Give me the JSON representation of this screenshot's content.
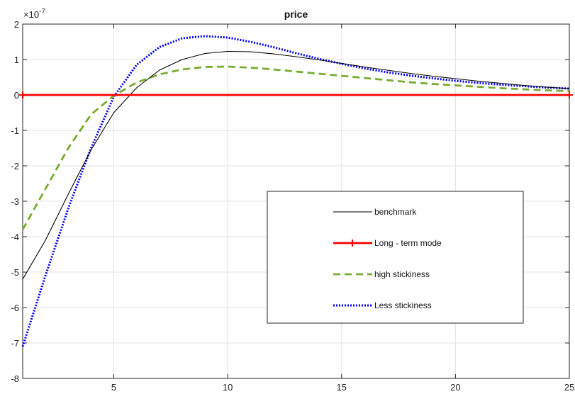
{
  "chart_data": {
    "type": "line",
    "title": "price",
    "xlabel": "",
    "ylabel": "",
    "y_exponent_label": "×10",
    "y_exponent_power": "-7",
    "xlim": [
      1,
      25
    ],
    "ylim": [
      -8,
      2
    ],
    "x_ticks": [
      5,
      10,
      15,
      20,
      25
    ],
    "y_ticks": [
      -8,
      -7,
      -6,
      -5,
      -4,
      -3,
      -2,
      -1,
      0,
      1,
      2
    ],
    "grid": true,
    "legend_position": "lower-right",
    "x": [
      1,
      2,
      3,
      4,
      5,
      6,
      7,
      8,
      9,
      10,
      11,
      12,
      13,
      14,
      15,
      16,
      17,
      18,
      19,
      20,
      21,
      22,
      23,
      24,
      25
    ],
    "series": [
      {
        "name": "benchmark",
        "color": "#000000",
        "style": "solid",
        "values": [
          -5.2,
          -4.1,
          -2.8,
          -1.55,
          -0.5,
          0.2,
          0.7,
          1.0,
          1.17,
          1.23,
          1.22,
          1.16,
          1.08,
          0.99,
          0.89,
          0.79,
          0.7,
          0.61,
          0.53,
          0.46,
          0.39,
          0.33,
          0.27,
          0.22,
          0.18
        ]
      },
      {
        "name": "Long - term mode",
        "color": "#ff0000",
        "style": "solid-plus",
        "values": [
          0,
          0,
          0,
          0,
          0,
          0,
          0,
          0,
          0,
          0,
          0,
          0,
          0,
          0,
          0,
          0,
          0,
          0,
          0,
          0,
          0,
          0,
          0,
          0,
          0
        ]
      },
      {
        "name": "high stickiness",
        "color": "#77ac30",
        "style": "dashed",
        "values": [
          -3.8,
          -2.65,
          -1.5,
          -0.55,
          -0.02,
          0.35,
          0.58,
          0.72,
          0.79,
          0.8,
          0.77,
          0.72,
          0.66,
          0.6,
          0.54,
          0.48,
          0.42,
          0.36,
          0.31,
          0.27,
          0.23,
          0.19,
          0.16,
          0.13,
          0.11
        ]
      },
      {
        "name": "Less stickiness",
        "color": "#0000ff",
        "style": "dotted",
        "values": [
          -7.1,
          -5.1,
          -3.2,
          -1.5,
          -0.05,
          0.85,
          1.35,
          1.6,
          1.66,
          1.62,
          1.5,
          1.35,
          1.18,
          1.02,
          0.88,
          0.75,
          0.64,
          0.55,
          0.47,
          0.4,
          0.34,
          0.29,
          0.25,
          0.21,
          0.18
        ]
      }
    ]
  }
}
